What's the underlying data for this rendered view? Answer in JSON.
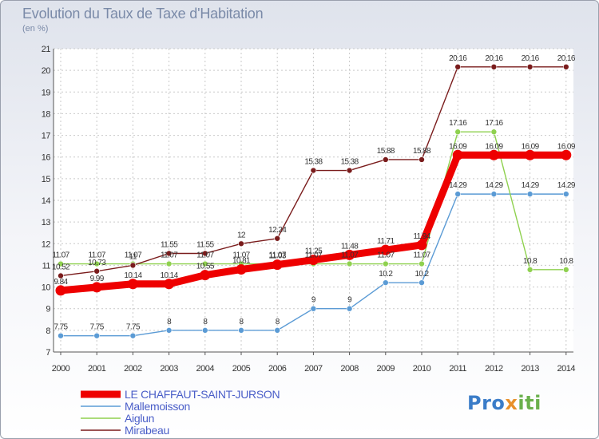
{
  "chart_data": {
    "type": "line",
    "title": "Evolution du Taux de Taxe d'Habitation",
    "subtitle": "(en %)",
    "x": [
      "2000",
      "2001",
      "2002",
      "2003",
      "2004",
      "2005",
      "2006",
      "2007",
      "2008",
      "2009",
      "2010",
      "2011",
      "2012",
      "2013",
      "2014"
    ],
    "ylim": [
      7,
      21
    ],
    "yticks": [
      7,
      8,
      9,
      10,
      11,
      12,
      13,
      14,
      15,
      16,
      17,
      18,
      19,
      20,
      21
    ],
    "grid": true,
    "legend_position": "bottom-left",
    "series": [
      {
        "name": "LE CHAFFAUT-SAINT-JURSON",
        "color": "#ee0000",
        "values": [
          9.84,
          9.99,
          10.14,
          10.14,
          10.55,
          10.81,
          11.03,
          11.25,
          11.48,
          11.71,
          11.94,
          16.09,
          16.09,
          16.09,
          16.09
        ],
        "labels": [
          "9.84",
          "9.99",
          "10.14",
          "10.14",
          "10.55",
          "10.81",
          "11.03",
          "11.25",
          "11.48",
          "11.71",
          "11.94",
          "16.09",
          "16.09",
          "16.09",
          "16.09"
        ]
      },
      {
        "name": "Mallemoisson",
        "color": "#5b9bd5",
        "values": [
          7.75,
          7.75,
          7.75,
          8,
          8,
          8,
          8,
          9,
          9,
          10.2,
          10.2,
          14.29,
          14.29,
          14.29,
          14.29
        ],
        "labels": [
          "7.75",
          "7.75",
          "7.75",
          "8",
          "8",
          "8",
          "8",
          "9",
          "9",
          "10.2",
          "10.2",
          "14.29",
          "14.29",
          "14.29",
          "14.29"
        ]
      },
      {
        "name": "Aiglun",
        "color": "#8fd14f",
        "values": [
          11.07,
          11.07,
          11.07,
          11.07,
          11.07,
          11.07,
          11.07,
          11.07,
          11.07,
          11.07,
          11.07,
          17.16,
          17.16,
          10.8,
          10.8
        ],
        "labels": [
          "11.07",
          "11.07",
          "11.07",
          "11.07",
          "11.07",
          "11.07",
          "11.07",
          "11.07",
          "11.07",
          "11.07",
          "11.07",
          "17.16",
          "17.16",
          "10.8",
          "10.8"
        ]
      },
      {
        "name": "Mirabeau",
        "color": "#7a1c1c",
        "values": [
          10.52,
          10.73,
          11,
          11.55,
          11.55,
          12,
          12.24,
          15.38,
          15.38,
          15.88,
          15.88,
          20.16,
          20.16,
          20.16,
          20.16
        ],
        "labels": [
          "10.52",
          "10.73",
          "11",
          "11.55",
          "11.55",
          "12",
          "12.24",
          "15.38",
          "15.38",
          "15.88",
          "15.88",
          "20.16",
          "20.16",
          "20.16",
          "20.16"
        ]
      }
    ]
  },
  "logo": {
    "part1": "Pro",
    "part2": "x",
    "part3": "iti"
  }
}
